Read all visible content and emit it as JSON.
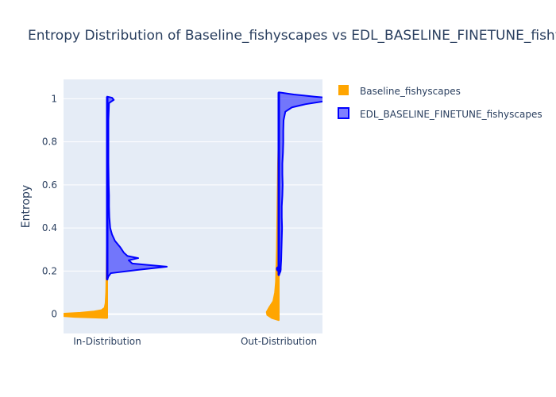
{
  "chart_data": {
    "type": "violin",
    "title": "Entropy Distribution of Baseline_fishyscapes vs EDL_BASELINE_FINETUNE_fishyscapes",
    "xlabel": "",
    "ylabel": "Entropy",
    "categories": [
      "In-Distribution",
      "Out-Distribution"
    ],
    "y_ticks": [
      0,
      0.2,
      0.4,
      0.6,
      0.8,
      1
    ],
    "y_tick_labels": [
      "0",
      "0.2",
      "0.4",
      "0.6",
      "0.8",
      "1"
    ],
    "ylim": [
      -0.09,
      1.09
    ],
    "grid": true,
    "legend_position": "top-right",
    "series": [
      {
        "name": "Baseline_fishyscapes",
        "side": "negative",
        "color": "#FFA500",
        "violins": [
          {
            "category": "In-Distribution",
            "range": [
              -0.02,
              0.58
            ],
            "density": [
              [
                -0.02,
                0.0
              ],
              [
                -0.015,
                0.55
              ],
              [
                -0.008,
                0.88
              ],
              [
                -0.003,
                1.0
              ],
              [
                0.0,
                0.96
              ],
              [
                0.004,
                0.72
              ],
              [
                0.008,
                0.45
              ],
              [
                0.014,
                0.22
              ],
              [
                0.02,
                0.1
              ],
              [
                0.03,
                0.05
              ],
              [
                0.05,
                0.035
              ],
              [
                0.1,
                0.025
              ],
              [
                0.2,
                0.018
              ],
              [
                0.35,
                0.012
              ],
              [
                0.5,
                0.008
              ],
              [
                0.58,
                0.0
              ]
            ]
          },
          {
            "category": "Out-Distribution",
            "range": [
              -0.03,
              0.83
            ],
            "density": [
              [
                -0.03,
                0.0
              ],
              [
                -0.02,
                0.12
              ],
              [
                -0.005,
                0.2
              ],
              [
                0.01,
                0.21
              ],
              [
                0.03,
                0.17
              ],
              [
                0.06,
                0.1
              ],
              [
                0.1,
                0.07
              ],
              [
                0.15,
                0.055
              ],
              [
                0.2,
                0.05
              ],
              [
                0.3,
                0.04
              ],
              [
                0.4,
                0.035
              ],
              [
                0.5,
                0.03
              ],
              [
                0.6,
                0.025
              ],
              [
                0.7,
                0.02
              ],
              [
                0.78,
                0.012
              ],
              [
                0.83,
                0.0
              ]
            ]
          }
        ]
      },
      {
        "name": "EDL_BASELINE_FINETUNE_fishyscapes",
        "side": "positive",
        "color": "#0000FF",
        "fill": "rgba(0,0,255,0.5)",
        "violins": [
          {
            "category": "In-Distribution",
            "range": [
              0.16,
              1.01
            ],
            "density": [
              [
                0.16,
                0.0
              ],
              [
                0.175,
                0.02
              ],
              [
                0.19,
                0.06
              ],
              [
                0.205,
                0.5
              ],
              [
                0.22,
                1.0
              ],
              [
                0.235,
                0.42
              ],
              [
                0.25,
                0.36
              ],
              [
                0.26,
                0.52
              ],
              [
                0.27,
                0.34
              ],
              [
                0.285,
                0.28
              ],
              [
                0.31,
                0.22
              ],
              [
                0.34,
                0.13
              ],
              [
                0.37,
                0.08
              ],
              [
                0.4,
                0.05
              ],
              [
                0.45,
                0.035
              ],
              [
                0.5,
                0.03
              ],
              [
                0.55,
                0.03
              ],
              [
                0.6,
                0.025
              ],
              [
                0.7,
                0.02
              ],
              [
                0.8,
                0.02
              ],
              [
                0.9,
                0.02
              ],
              [
                0.98,
                0.03
              ],
              [
                0.995,
                0.11
              ],
              [
                1.005,
                0.08
              ],
              [
                1.01,
                0.0
              ]
            ]
          },
          {
            "category": "Out-Distribution",
            "range": [
              0.18,
              1.03
            ],
            "density": [
              [
                0.18,
                0.0
              ],
              [
                0.2,
                0.03
              ],
              [
                0.25,
                0.04
              ],
              [
                0.3,
                0.045
              ],
              [
                0.35,
                0.05
              ],
              [
                0.4,
                0.055
              ],
              [
                0.45,
                0.05
              ],
              [
                0.5,
                0.05
              ],
              [
                0.55,
                0.06
              ],
              [
                0.6,
                0.065
              ],
              [
                0.65,
                0.06
              ],
              [
                0.7,
                0.06
              ],
              [
                0.75,
                0.07
              ],
              [
                0.8,
                0.075
              ],
              [
                0.85,
                0.075
              ],
              [
                0.9,
                0.08
              ],
              [
                0.94,
                0.11
              ],
              [
                0.96,
                0.22
              ],
              [
                0.975,
                0.45
              ],
              [
                0.99,
                0.8
              ],
              [
                1.0,
                1.0
              ],
              [
                1.01,
                0.6
              ],
              [
                1.02,
                0.25
              ],
              [
                1.03,
                0.0
              ]
            ]
          }
        ]
      }
    ],
    "markers": [
      {
        "series": "EDL_BASELINE_FINETUNE_fishyscapes",
        "category": "Out-Distribution",
        "y": 0.21
      }
    ]
  }
}
